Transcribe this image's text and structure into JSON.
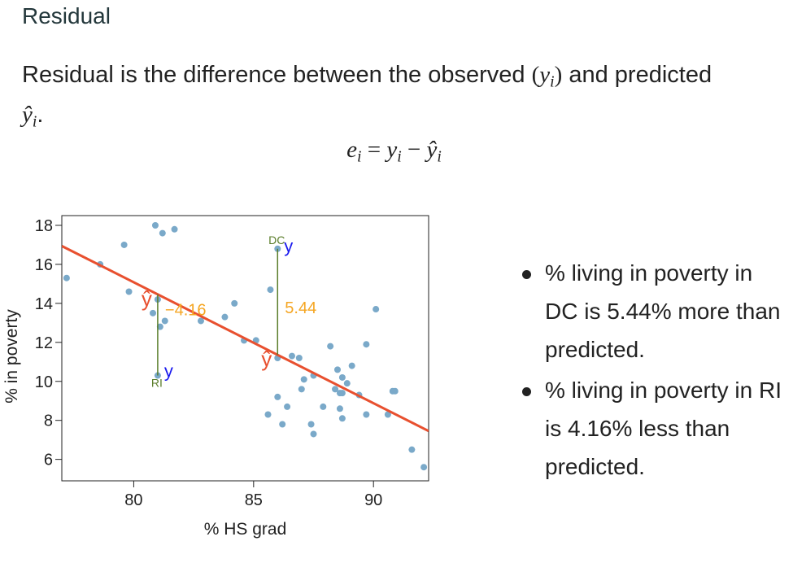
{
  "slide": {
    "title": "Residual",
    "intro_text": "Residual is the difference between the observed",
    "intro_obs": "y",
    "intro_obs_sub": "i",
    "intro_and": "and predicted",
    "intro_pred": "ŷ",
    "intro_pred_sub": "i",
    "intro_end": ".",
    "formula": {
      "lhs": "e",
      "lhs_sub": "i",
      "eq": "=",
      "y": "y",
      "y_sub": "i",
      "minus": "−",
      "yhat": "ŷ",
      "yhat_sub": "i"
    }
  },
  "bullets": [
    "% living in poverty in DC is 5.44% more than predicted.",
    "% living in poverty in RI is 4.16% less than predicted."
  ],
  "colors": {
    "points": "#7aa9c9",
    "line": "#e8502f",
    "residual": "#5a7d2a",
    "residual_label": "#f5a623",
    "observed_label": "#1a1aee",
    "predicted_label": "#e8502f"
  },
  "chart_data": {
    "type": "scatter",
    "xlabel": "% HS grad",
    "ylabel": "% in poverty",
    "xlim": [
      77,
      92.3
    ],
    "ylim": [
      4.9,
      18.5
    ],
    "xticks": [
      80,
      85,
      90
    ],
    "yticks": [
      6,
      8,
      10,
      12,
      14,
      16,
      18
    ],
    "regression": {
      "intercept": 64.68,
      "slope": -0.62
    },
    "points": [
      [
        77.2,
        15.3
      ],
      [
        78.6,
        16.0
      ],
      [
        79.6,
        17.0
      ],
      [
        80.9,
        18.0
      ],
      [
        81.2,
        17.6
      ],
      [
        81.7,
        17.8
      ],
      [
        79.8,
        14.6
      ],
      [
        80.8,
        13.5
      ],
      [
        81.3,
        13.1
      ],
      [
        81.1,
        12.8
      ],
      [
        81.0,
        14.2
      ],
      [
        82.8,
        13.1
      ],
      [
        83.8,
        13.3
      ],
      [
        84.2,
        14.0
      ],
      [
        84.6,
        12.1
      ],
      [
        85.1,
        12.1
      ],
      [
        85.7,
        14.7
      ],
      [
        86.0,
        16.8
      ],
      [
        86.0,
        11.2
      ],
      [
        86.6,
        11.3
      ],
      [
        86.9,
        11.2
      ],
      [
        87.5,
        10.3
      ],
      [
        87.1,
        10.1
      ],
      [
        87.0,
        9.6
      ],
      [
        88.2,
        11.8
      ],
      [
        88.5,
        10.6
      ],
      [
        88.7,
        10.2
      ],
      [
        88.9,
        9.9
      ],
      [
        89.1,
        10.8
      ],
      [
        89.7,
        11.9
      ],
      [
        88.4,
        9.6
      ],
      [
        88.6,
        9.4
      ],
      [
        88.7,
        9.4
      ],
      [
        89.4,
        9.3
      ],
      [
        90.1,
        13.7
      ],
      [
        86.0,
        9.2
      ],
      [
        86.4,
        8.7
      ],
      [
        87.9,
        8.7
      ],
      [
        88.6,
        8.6
      ],
      [
        85.6,
        8.3
      ],
      [
        86.2,
        7.8
      ],
      [
        87.4,
        7.8
      ],
      [
        87.5,
        7.3
      ],
      [
        88.7,
        8.1
      ],
      [
        89.7,
        8.3
      ],
      [
        90.6,
        8.3
      ],
      [
        90.8,
        9.5
      ],
      [
        90.9,
        9.5
      ],
      [
        91.6,
        6.5
      ],
      [
        92.1,
        5.6
      ],
      [
        81.0,
        10.3
      ]
    ],
    "annotations": [
      {
        "name": "DC",
        "x": 86.0,
        "y": 16.8,
        "residual": "5.44"
      },
      {
        "name": "RI",
        "x": 81.0,
        "y": 10.3,
        "residual": "−4.16"
      }
    ],
    "observed_marker": "y",
    "predicted_marker": "ŷ"
  }
}
